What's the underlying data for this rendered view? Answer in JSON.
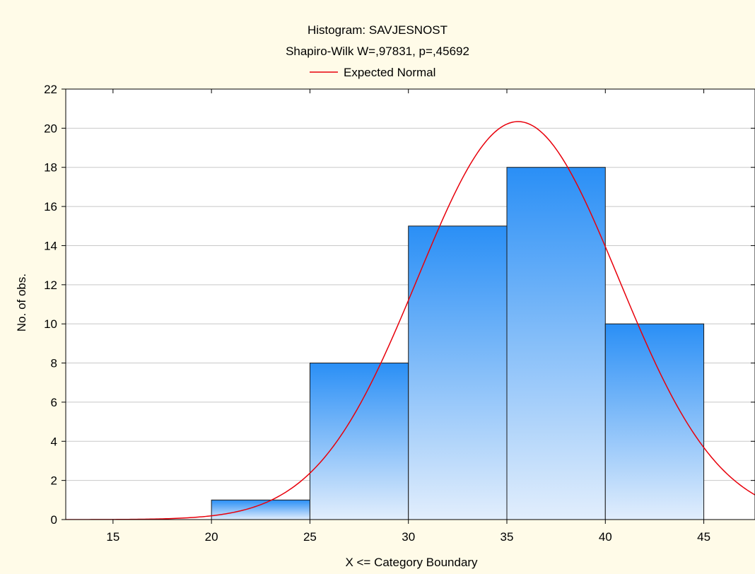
{
  "chart_data": {
    "type": "bar",
    "title": "Histogram: SAVJESNOST",
    "subtitle": "Shapiro-Wilk W=,97831, p=,45692",
    "legend": [
      {
        "name": "Expected Normal",
        "color": "#e8000b",
        "placement": "top-center"
      }
    ],
    "xlabel": "X <= Category Boundary",
    "ylabel": "No. of obs.",
    "xlim": [
      12.6,
      47.6
    ],
    "ylim": [
      0,
      22
    ],
    "x_ticks": [
      15,
      20,
      25,
      30,
      35,
      40,
      45
    ],
    "y_ticks": [
      0,
      2,
      4,
      6,
      8,
      10,
      12,
      14,
      16,
      18,
      20,
      22
    ],
    "grid": "horizontal",
    "bins": [
      {
        "from": 15,
        "to": 20,
        "value": 0
      },
      {
        "from": 20,
        "to": 25,
        "value": 1
      },
      {
        "from": 25,
        "to": 30,
        "value": 8
      },
      {
        "from": 30,
        "to": 35,
        "value": 15
      },
      {
        "from": 35,
        "to": 40,
        "value": 18
      },
      {
        "from": 40,
        "to": 45,
        "value": 10
      }
    ],
    "expected_normal": {
      "mean": 35.57,
      "sd": 5.1,
      "n": 52,
      "bin_width": 5
    },
    "colors": {
      "background": "#fffbe8",
      "plot_area": "#ffffff",
      "bar_top": "#2a8ff6",
      "bar_bottom": "#e2eefc",
      "bar_border": "#1a1a1a",
      "curve": "#e8000b",
      "grid": "#c8c8c8"
    }
  }
}
